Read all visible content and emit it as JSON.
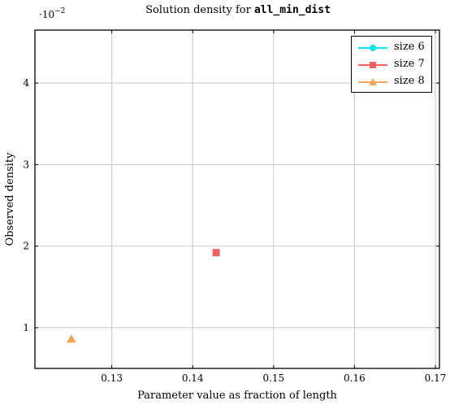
{
  "chart_data": {
    "type": "scatter",
    "title_prefix": "Solution density for ",
    "title_code": "all_min_dist",
    "xlabel": "Parameter value as fraction of length",
    "ylabel": "Observed density",
    "y_multiplier_base": "·10",
    "y_multiplier_exp": "−2",
    "xlim": [
      0.1205,
      0.1705
    ],
    "ylim": [
      0.5,
      4.65
    ],
    "xticks": [
      0.13,
      0.14,
      0.15,
      0.16,
      0.17
    ],
    "xtick_labels": [
      "0.13",
      "0.14",
      "0.15",
      "0.16",
      "0.17"
    ],
    "yticks": [
      1,
      2,
      3,
      4
    ],
    "ytick_labels": [
      "1",
      "2",
      "3",
      "4"
    ],
    "grid": true,
    "legend_position": "top-right",
    "series": [
      {
        "name": "size 6",
        "marker": "circle",
        "color": "#00e5ee",
        "points": []
      },
      {
        "name": "size 7",
        "marker": "square",
        "color": "#f06060",
        "points": [
          [
            0.1429,
            1.92
          ]
        ]
      },
      {
        "name": "size 8",
        "marker": "triangle",
        "color": "#f5a85a",
        "points": [
          [
            0.125,
            0.86
          ]
        ]
      }
    ]
  }
}
